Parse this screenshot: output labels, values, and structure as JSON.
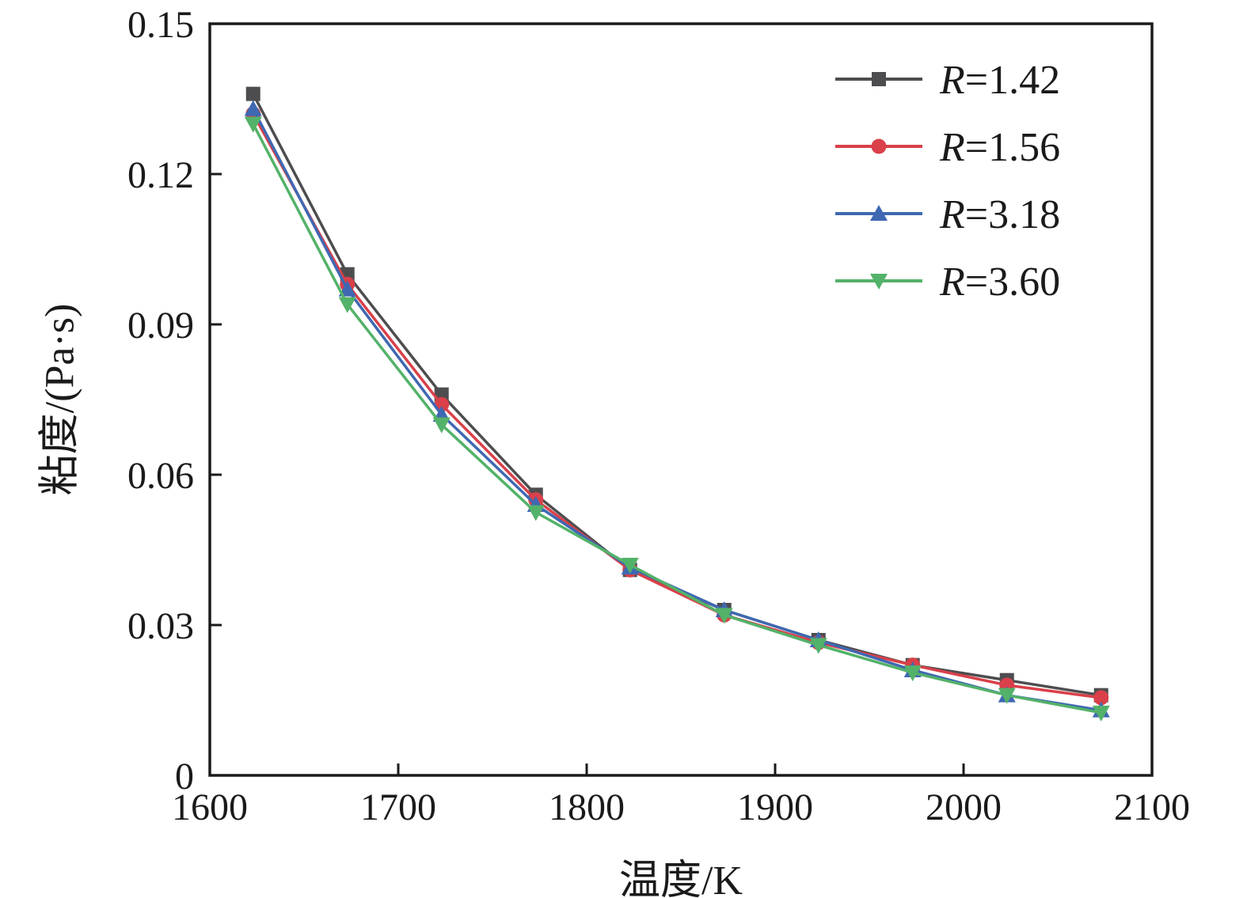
{
  "chart_data": {
    "type": "line",
    "title": "",
    "xlabel": "温度/K",
    "ylabel": "粘度/(Pa·s)",
    "xlim": [
      1600,
      2100
    ],
    "ylim": [
      0,
      0.15
    ],
    "grid": false,
    "legend_position": "top-right",
    "xticks": [
      1600,
      1700,
      1800,
      1900,
      2000,
      2100
    ],
    "xtick_labels": [
      "1600",
      "1700",
      "1800",
      "1900",
      "2000",
      "2100"
    ],
    "yticks": [
      0,
      0.03,
      0.06,
      0.09,
      0.12,
      0.15
    ],
    "ytick_labels": [
      "0",
      "0.03",
      "0.06",
      "0.09",
      "0.12",
      "0.15"
    ],
    "x": [
      1623,
      1673,
      1723,
      1773,
      1823,
      1873,
      1923,
      1973,
      2023,
      2073
    ],
    "series": [
      {
        "name": "R=1.42",
        "marker": "square",
        "color": "#4d4d4f",
        "values": [
          0.136,
          0.1,
          0.076,
          0.056,
          0.041,
          0.033,
          0.027,
          0.022,
          0.019,
          0.016
        ]
      },
      {
        "name": "R=1.56",
        "marker": "circle",
        "color": "#d9404a",
        "values": [
          0.132,
          0.098,
          0.074,
          0.055,
          0.041,
          0.032,
          0.0265,
          0.022,
          0.018,
          0.0155
        ]
      },
      {
        "name": "R=3.18",
        "marker": "triangle-up",
        "color": "#3f68b2",
        "values": [
          0.133,
          0.097,
          0.072,
          0.054,
          0.0415,
          0.033,
          0.027,
          0.021,
          0.016,
          0.013
        ]
      },
      {
        "name": "R=3.60",
        "marker": "triangle-down",
        "color": "#53b269",
        "values": [
          0.13,
          0.094,
          0.07,
          0.0525,
          0.042,
          0.032,
          0.026,
          0.0205,
          0.016,
          0.0125
        ]
      }
    ]
  }
}
